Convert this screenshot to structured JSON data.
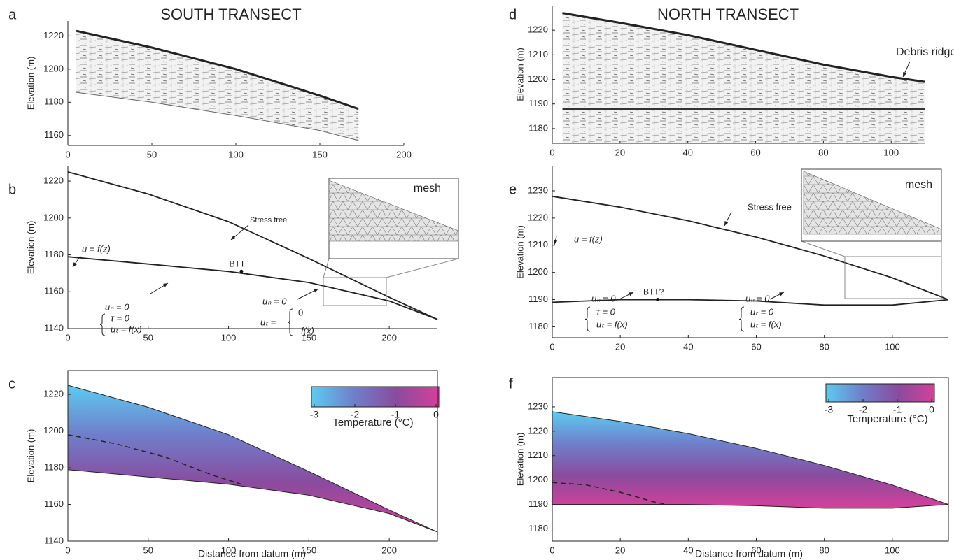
{
  "chart_data": [
    {
      "type": "radargram",
      "panel": "a",
      "title": "SOUTH TRANSECT",
      "ylabel": "Elevation (m)",
      "xlim": [
        0,
        200
      ],
      "xticks": [
        0,
        50,
        100,
        150,
        200
      ],
      "ylim": [
        1154,
        1229
      ],
      "yticks": [
        1160,
        1180,
        1200,
        1220
      ],
      "surface": {
        "x": [
          5,
          50,
          100,
          150,
          173
        ],
        "values": [
          1223,
          1213,
          1200,
          1184,
          1176
        ]
      },
      "base": {
        "x": [
          5,
          50,
          100,
          150,
          173
        ],
        "values": [
          1186,
          1180,
          1172,
          1163,
          1157
        ]
      },
      "annotations": []
    },
    {
      "type": "profile",
      "panel": "b",
      "ylabel": "Elevation (m)",
      "xlim": [
        0,
        230
      ],
      "xticks": [
        0,
        50,
        100,
        150,
        200
      ],
      "ylim": [
        1140,
        1228
      ],
      "yticks": [
        1140,
        1160,
        1180,
        1200,
        1220
      ],
      "surface": {
        "x": [
          0,
          50,
          100,
          150,
          200,
          230
        ],
        "values": [
          1225,
          1213,
          1198,
          1178,
          1157,
          1145
        ]
      },
      "bed": {
        "x": [
          0,
          50,
          100,
          150,
          200,
          230
        ],
        "values": [
          1179,
          1175,
          1171,
          1165,
          1155,
          1145
        ]
      },
      "points": [
        {
          "label": "BTT",
          "x": 108,
          "y": 1171
        }
      ],
      "annotations": [
        "Stress free",
        "u = f(z)",
        "uₙ = 0",
        "τ = 0",
        "uₜ = f(x)",
        "uₙ = 0",
        "uₜ =",
        "0",
        "f(x)",
        "mesh"
      ]
    },
    {
      "type": "temperature",
      "panel": "c",
      "ylabel": "Elevation (m)",
      "xlabel": "Distance from datum (m)",
      "xlim": [
        0,
        230
      ],
      "xticks": [
        0,
        50,
        100,
        150,
        200
      ],
      "ylim": [
        1140,
        1233
      ],
      "yticks": [
        1140,
        1160,
        1180,
        1200,
        1220
      ],
      "surface": {
        "x": [
          0,
          50,
          100,
          150,
          200,
          230
        ],
        "values": [
          1225,
          1213,
          1198,
          1178,
          1157,
          1145
        ]
      },
      "bed": {
        "x": [
          0,
          50,
          100,
          150,
          200,
          230
        ],
        "values": [
          1179,
          1175,
          1171,
          1165,
          1155,
          1145
        ]
      },
      "isotherm": {
        "x": [
          0,
          30,
          60,
          90,
          108
        ],
        "values": [
          1198,
          1193,
          1186,
          1176,
          1171
        ]
      },
      "colorbar": {
        "label": "Temperature (°C)",
        "lim": [
          -3,
          0
        ],
        "ticks": [
          -3,
          -2,
          -1,
          0
        ],
        "colors": [
          "#5ccbf0",
          "#6f7fcb",
          "#8a4b9e",
          "#d5409a"
        ]
      }
    },
    {
      "type": "radargram",
      "panel": "d",
      "title": "NORTH TRANSECT",
      "ylabel": "Elevation (m)",
      "xlim": [
        0,
        108
      ],
      "xticks": [
        0,
        20,
        40,
        60,
        80,
        100
      ],
      "ylim": [
        1174,
        1230
      ],
      "yticks": [
        1180,
        1190,
        1200,
        1210,
        1220
      ],
      "surface": {
        "x": [
          3,
          20,
          40,
          60,
          80,
          100,
          110
        ],
        "values": [
          1227,
          1223,
          1218,
          1212,
          1206,
          1201,
          1199
        ]
      },
      "base": {
        "x": [
          3,
          110
        ],
        "values": [
          1174,
          1174
        ]
      },
      "annotations": [
        "Debris ridge"
      ]
    },
    {
      "type": "profile",
      "panel": "e",
      "ylabel": "Elevation (m)",
      "xlim": [
        0,
        116.5
      ],
      "xticks": [
        0,
        20,
        40,
        60,
        80,
        100
      ],
      "ylim": [
        1176,
        1239
      ],
      "yticks": [
        1180,
        1190,
        1200,
        1210,
        1220,
        1230
      ],
      "surface": {
        "x": [
          0,
          20,
          40,
          60,
          80,
          100,
          116.5
        ],
        "values": [
          1228,
          1224,
          1219,
          1213,
          1206,
          1198,
          1190
        ]
      },
      "bed": {
        "x": [
          0,
          20,
          40,
          60,
          80,
          100,
          116.5
        ],
        "values": [
          1189,
          1190,
          1190,
          1189.5,
          1188,
          1188,
          1190
        ]
      },
      "points": [
        {
          "label": "BTT?",
          "x": 31,
          "y": 1190
        }
      ],
      "annotations": [
        "Stress free",
        "u = f(z)",
        "uₙ = 0",
        "τ = 0",
        "uₜ = f(x)",
        "uₙ = 0",
        "uₜ = 0",
        "uₜ = f(x)",
        "mesh"
      ]
    },
    {
      "type": "temperature",
      "panel": "f",
      "ylabel": "Elevation (m)",
      "xlabel": "Distance from datum (m)",
      "xlim": [
        0,
        116.5
      ],
      "xticks": [
        0,
        20,
        40,
        60,
        80,
        100
      ],
      "ylim": [
        1175,
        1242
      ],
      "yticks": [
        1180,
        1190,
        1200,
        1210,
        1220,
        1230
      ],
      "surface": {
        "x": [
          0,
          20,
          40,
          60,
          80,
          100,
          116.5
        ],
        "values": [
          1228,
          1224,
          1219,
          1213,
          1206,
          1198,
          1190
        ]
      },
      "bed": {
        "x": [
          0,
          20,
          40,
          60,
          80,
          100,
          116.5
        ],
        "values": [
          1190,
          1190,
          1190,
          1189.5,
          1188.5,
          1188.5,
          1190
        ]
      },
      "isotherm": {
        "x": [
          0,
          10,
          20,
          30,
          34
        ],
        "values": [
          1199,
          1198,
          1195,
          1191,
          1190
        ]
      },
      "colorbar": {
        "label": "Temperature (°C)",
        "lim": [
          -3,
          0
        ],
        "ticks": [
          -3,
          -2,
          -1,
          0
        ],
        "colors": [
          "#5ccbf0",
          "#6f7fcb",
          "#8a4b9e",
          "#d5409a"
        ]
      }
    }
  ]
}
